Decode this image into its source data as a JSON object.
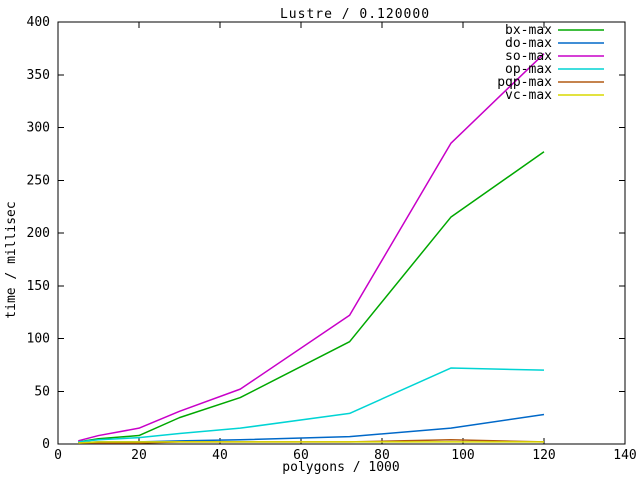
{
  "chart_data": {
    "type": "line",
    "title": "Lustre / 0.120000",
    "xlabel": "polygons / 1000",
    "ylabel": "time / millisec",
    "xlim": [
      0,
      140
    ],
    "ylim": [
      0,
      400
    ],
    "xticks": [
      0,
      20,
      40,
      60,
      80,
      100,
      120,
      140
    ],
    "yticks": [
      0,
      50,
      100,
      150,
      200,
      250,
      300,
      350,
      400
    ],
    "grid": false,
    "legend_position": "top-right",
    "background_color": "#ffffff",
    "axis_color": "#000000",
    "x": [
      5,
      10,
      20,
      30,
      45,
      72,
      97,
      120
    ],
    "series": [
      {
        "name": "bx-max",
        "color": "#00a800",
        "values": [
          2,
          5,
          8,
          25,
          44,
          97,
          215,
          277
        ]
      },
      {
        "name": "do-max",
        "color": "#0068c8",
        "values": [
          1,
          2,
          2,
          3,
          4,
          7,
          15,
          28
        ]
      },
      {
        "name": "so-max",
        "color": "#c800c8",
        "values": [
          3,
          8,
          15,
          31,
          52,
          122,
          285,
          370
        ]
      },
      {
        "name": "op-max",
        "color": "#00d4d4",
        "values": [
          2,
          4,
          6,
          10,
          15,
          29,
          72,
          70
        ]
      },
      {
        "name": "pqp-max",
        "color": "#b25a14",
        "values": [
          1,
          1,
          1,
          2,
          2,
          2,
          4,
          2
        ]
      },
      {
        "name": "vc-max",
        "color": "#d8d800",
        "values": [
          1,
          2,
          2,
          2,
          2,
          2,
          2,
          2
        ]
      }
    ]
  }
}
